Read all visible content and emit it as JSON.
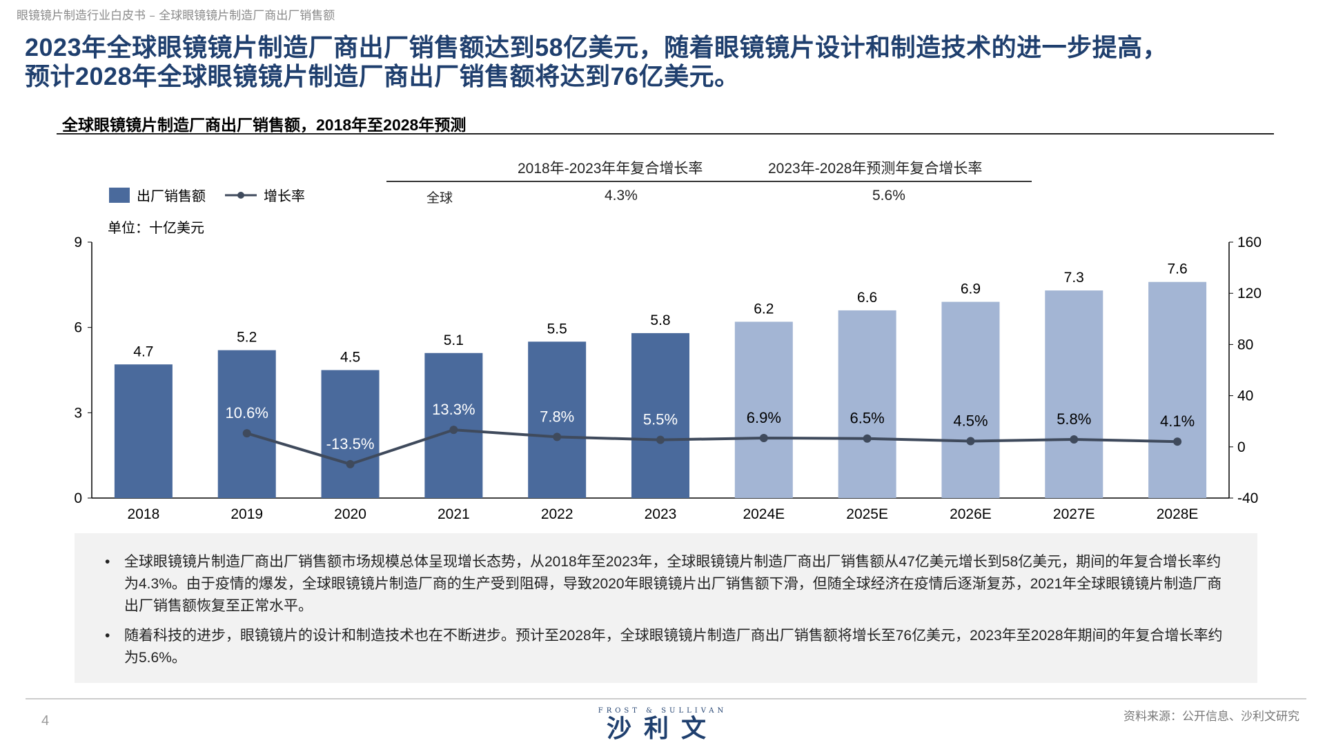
{
  "breadcrumb": "眼镜镜片制造行业白皮书 – 全球眼镜镜片制造厂商出厂销售额",
  "title_lines": [
    "2023年全球眼镜镜片制造厂商出厂销售额达到58亿美元，随着眼镜镜片设计和制造技术的进一步提高，",
    "预计2028年全球眼镜镜片制造厂商出厂销售额将达到76亿美元。"
  ],
  "subtitle": "全球眼镜镜片制造厂商出厂销售额，2018年至2028年预测",
  "cagr_table": {
    "headers": [
      "2018年-2023年年复合增长率",
      "2023年-2028年预测年复合增长率"
    ],
    "row_label": "全球",
    "values": [
      "4.3%",
      "5.6%"
    ]
  },
  "legend": {
    "bar": "出厂销售额",
    "line": "增长率"
  },
  "unit": "单位：十亿美元",
  "colors": {
    "actual_bar": "#4a6a9c",
    "forecast_bar": "#a3b5d4",
    "line": "#3f4a5c",
    "title": "#1f3f6e"
  },
  "chart_data": {
    "type": "bar+line",
    "categories": [
      "2018",
      "2019",
      "2020",
      "2021",
      "2022",
      "2023",
      "2024E",
      "2025E",
      "2026E",
      "2027E",
      "2028E"
    ],
    "series": [
      {
        "name": "出厂销售额",
        "type": "bar",
        "axis": "left",
        "values": [
          4.7,
          5.2,
          4.5,
          5.1,
          5.5,
          5.8,
          6.2,
          6.6,
          6.9,
          7.3,
          7.6
        ],
        "labels": [
          "4.7",
          "5.2",
          "4.5",
          "5.1",
          "5.5",
          "5.8",
          "6.2",
          "6.6",
          "6.9",
          "7.3",
          "7.6"
        ]
      },
      {
        "name": "增长率",
        "type": "line",
        "axis": "right",
        "values": [
          null,
          10.6,
          -13.5,
          13.3,
          7.8,
          5.5,
          6.9,
          6.5,
          4.5,
          5.8,
          4.1
        ],
        "labels": [
          "",
          "10.6%",
          "-13.5%",
          "13.3%",
          "7.8%",
          "5.5%",
          "6.9%",
          "6.5%",
          "4.5%",
          "5.8%",
          "4.1%"
        ]
      }
    ],
    "forecast_from": "2024E",
    "y_left": {
      "range": [
        0,
        9
      ],
      "ticks": [
        "0",
        "3",
        "6",
        "9"
      ]
    },
    "y_right": {
      "range": [
        -40,
        160
      ],
      "ticks": [
        "-40",
        "0",
        "40",
        "80",
        "120",
        "160"
      ]
    }
  },
  "notes": [
    "全球眼镜镜片制造厂商出厂销售额市场规模总体呈现增长态势，从2018年至2023年，全球眼镜镜片制造厂商出厂销售额从47亿美元增长到58亿美元，期间的年复合增长率约为4.3%。由于疫情的爆发，全球眼镜镜片制造厂商的生产受到阻碍，导致2020年眼镜镜片出厂销售额下滑，但随全球经济在疫情后逐渐复苏，2021年全球眼镜镜片制造厂商出厂销售额恢复至正常水平。",
    "随着科技的进步，眼镜镜片的设计和制造技术也在不断进步。预计至2028年，全球眼镜镜片制造厂商出厂销售额将增长至76亿美元，2023年至2028年期间的年复合增长率约为5.6%。"
  ],
  "footer": {
    "page": "4",
    "logo_en": "FROST & SULLIVAN",
    "logo_cn": "沙利文",
    "source": "资料来源：公开信息、沙利文研究"
  }
}
